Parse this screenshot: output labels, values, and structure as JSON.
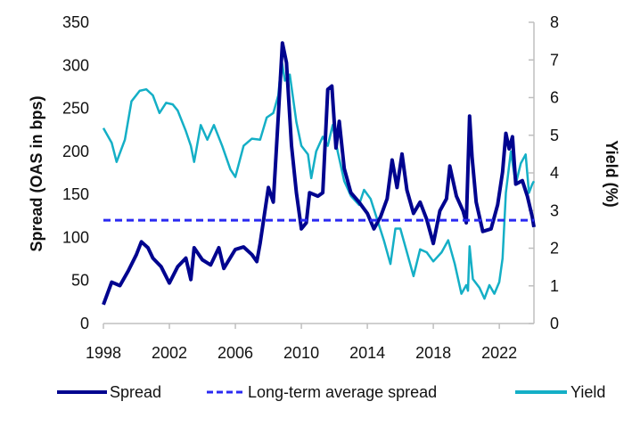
{
  "chart_data": {
    "type": "line",
    "xlabel": "",
    "ylabel_left": "Spread (OAS in bps)",
    "ylabel_right": "Yield (%)",
    "xlim": [
      1998,
      2024.1
    ],
    "ylim_left": [
      0,
      350
    ],
    "ylim_right": [
      0,
      8
    ],
    "x_ticks": [
      "1998",
      "2002",
      "2006",
      "2010",
      "2014",
      "2018",
      "2022"
    ],
    "left_ticks": [
      "0",
      "50",
      "100",
      "150",
      "200",
      "250",
      "300",
      "350"
    ],
    "right_ticks": [
      "0",
      "1",
      "2",
      "3",
      "4",
      "5",
      "6",
      "7",
      "8"
    ],
    "grid": false,
    "legend_position": "bottom",
    "colors": {
      "spread": "#00048f",
      "average": "#2a2af2",
      "yield": "#14afc6",
      "axis": "#bfbfbf"
    },
    "series": [
      {
        "name": "Spread",
        "axis": "left",
        "points": [
          [
            1998.0,
            22
          ],
          [
            1998.5,
            48
          ],
          [
            1999.0,
            44
          ],
          [
            1999.5,
            61
          ],
          [
            2000.0,
            80
          ],
          [
            2000.3,
            95
          ],
          [
            2000.7,
            88
          ],
          [
            2001.0,
            76
          ],
          [
            2001.5,
            66
          ],
          [
            2002.0,
            47
          ],
          [
            2002.5,
            66
          ],
          [
            2003.0,
            76
          ],
          [
            2003.3,
            51
          ],
          [
            2003.5,
            88
          ],
          [
            2004.0,
            74
          ],
          [
            2004.5,
            68
          ],
          [
            2005.0,
            88
          ],
          [
            2005.3,
            64
          ],
          [
            2006.0,
            86
          ],
          [
            2006.5,
            89
          ],
          [
            2007.0,
            80
          ],
          [
            2007.3,
            72
          ],
          [
            2007.5,
            93
          ],
          [
            2008.0,
            158
          ],
          [
            2008.3,
            141
          ],
          [
            2008.6,
            241
          ],
          [
            2008.85,
            326
          ],
          [
            2009.1,
            303
          ],
          [
            2009.4,
            207
          ],
          [
            2009.7,
            152
          ],
          [
            2010.0,
            110
          ],
          [
            2010.3,
            117
          ],
          [
            2010.5,
            152
          ],
          [
            2011.0,
            148
          ],
          [
            2011.3,
            152
          ],
          [
            2011.6,
            272
          ],
          [
            2011.85,
            276
          ],
          [
            2012.1,
            204
          ],
          [
            2012.3,
            235
          ],
          [
            2012.6,
            180
          ],
          [
            2013.0,
            152
          ],
          [
            2013.5,
            141
          ],
          [
            2014.0,
            128
          ],
          [
            2014.4,
            110
          ],
          [
            2014.8,
            124
          ],
          [
            2015.2,
            145
          ],
          [
            2015.5,
            190
          ],
          [
            2015.8,
            158
          ],
          [
            2016.1,
            197
          ],
          [
            2016.4,
            155
          ],
          [
            2016.8,
            128
          ],
          [
            2017.2,
            141
          ],
          [
            2017.6,
            121
          ],
          [
            2018.0,
            93
          ],
          [
            2018.4,
            131
          ],
          [
            2018.8,
            145
          ],
          [
            2019.0,
            183
          ],
          [
            2019.4,
            148
          ],
          [
            2019.8,
            131
          ],
          [
            2020.0,
            117
          ],
          [
            2020.2,
            241
          ],
          [
            2020.35,
            193
          ],
          [
            2020.6,
            141
          ],
          [
            2021.0,
            107
          ],
          [
            2021.5,
            110
          ],
          [
            2021.9,
            138
          ],
          [
            2022.2,
            176
          ],
          [
            2022.4,
            221
          ],
          [
            2022.6,
            203
          ],
          [
            2022.8,
            217
          ],
          [
            2023.0,
            162
          ],
          [
            2023.4,
            166
          ],
          [
            2023.7,
            148
          ],
          [
            2024.0,
            124
          ],
          [
            2024.1,
            112
          ]
        ]
      },
      {
        "name": "Long-term average spread",
        "axis": "left",
        "constant": 120
      },
      {
        "name": "Yield",
        "axis": "right",
        "points": [
          [
            1998.0,
            5.19
          ],
          [
            1998.5,
            4.8
          ],
          [
            1998.8,
            4.29
          ],
          [
            1999.3,
            4.88
          ],
          [
            1999.7,
            5.9
          ],
          [
            2000.2,
            6.18
          ],
          [
            2000.6,
            6.22
          ],
          [
            2001.0,
            6.06
          ],
          [
            2001.4,
            5.59
          ],
          [
            2001.8,
            5.86
          ],
          [
            2002.2,
            5.82
          ],
          [
            2002.5,
            5.66
          ],
          [
            2003.0,
            5.11
          ],
          [
            2003.3,
            4.72
          ],
          [
            2003.5,
            4.29
          ],
          [
            2003.9,
            5.27
          ],
          [
            2004.3,
            4.88
          ],
          [
            2004.7,
            5.27
          ],
          [
            2005.2,
            4.72
          ],
          [
            2005.7,
            4.09
          ],
          [
            2006.0,
            3.89
          ],
          [
            2006.5,
            4.72
          ],
          [
            2007.0,
            4.91
          ],
          [
            2007.5,
            4.88
          ],
          [
            2007.9,
            5.47
          ],
          [
            2008.3,
            5.59
          ],
          [
            2008.6,
            6.06
          ],
          [
            2008.8,
            7.0
          ],
          [
            2009.0,
            6.45
          ],
          [
            2009.3,
            6.61
          ],
          [
            2009.7,
            5.35
          ],
          [
            2010.0,
            4.72
          ],
          [
            2010.4,
            4.49
          ],
          [
            2010.6,
            3.86
          ],
          [
            2010.9,
            4.57
          ],
          [
            2011.3,
            4.96
          ],
          [
            2011.6,
            4.72
          ],
          [
            2011.9,
            5.27
          ],
          [
            2012.2,
            4.57
          ],
          [
            2012.6,
            3.78
          ],
          [
            2013.0,
            3.39
          ],
          [
            2013.5,
            3.15
          ],
          [
            2013.8,
            3.55
          ],
          [
            2014.2,
            3.31
          ],
          [
            2014.6,
            2.76
          ],
          [
            2015.0,
            2.21
          ],
          [
            2015.4,
            1.58
          ],
          [
            2015.7,
            2.52
          ],
          [
            2016.0,
            2.52
          ],
          [
            2016.4,
            1.89
          ],
          [
            2016.8,
            1.26
          ],
          [
            2017.2,
            1.97
          ],
          [
            2017.6,
            1.89
          ],
          [
            2018.0,
            1.65
          ],
          [
            2018.5,
            1.89
          ],
          [
            2018.9,
            2.21
          ],
          [
            2019.3,
            1.58
          ],
          [
            2019.7,
            0.79
          ],
          [
            2020.0,
            1.02
          ],
          [
            2020.1,
            0.87
          ],
          [
            2020.2,
            2.05
          ],
          [
            2020.4,
            1.18
          ],
          [
            2020.8,
            0.95
          ],
          [
            2021.1,
            0.66
          ],
          [
            2021.4,
            1.02
          ],
          [
            2021.7,
            0.79
          ],
          [
            2022.0,
            1.1
          ],
          [
            2022.2,
            1.73
          ],
          [
            2022.4,
            3.47
          ],
          [
            2022.7,
            4.57
          ],
          [
            2023.0,
            3.7
          ],
          [
            2023.3,
            4.25
          ],
          [
            2023.6,
            4.49
          ],
          [
            2023.8,
            3.47
          ],
          [
            2024.0,
            3.7
          ],
          [
            2024.1,
            3.78
          ]
        ]
      }
    ],
    "legend": [
      "Spread",
      "Long-term average spread",
      "Yield"
    ]
  }
}
